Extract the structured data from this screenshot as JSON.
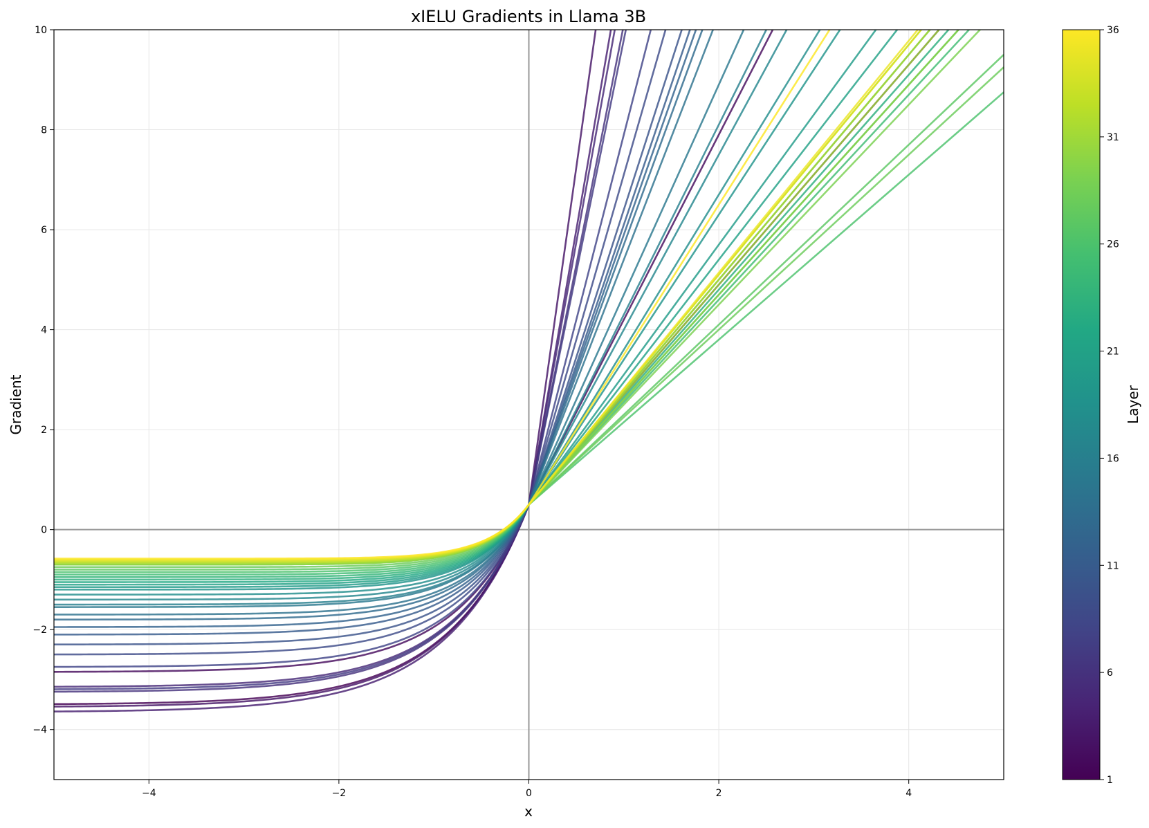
{
  "chart_data": {
    "type": "line",
    "title": "xIELU Gradients in Llama 3B",
    "xlabel": "x",
    "ylabel": "Gradient",
    "xlim": [
      -5,
      5
    ],
    "ylim": [
      -5,
      10
    ],
    "xticks": [
      -4,
      -2,
      0,
      2,
      4
    ],
    "yticks": [
      -4,
      -2,
      0,
      2,
      4,
      6,
      8,
      10
    ],
    "xtick_labels": [
      "−4",
      "−2",
      "0",
      "2",
      "4"
    ],
    "ytick_labels": [
      "−4",
      "−2",
      "0",
      "2",
      "4",
      "6",
      "8",
      "10"
    ],
    "grid": true,
    "colormap": "viridis",
    "colorbar": {
      "label": "Layer",
      "min": 1,
      "max": 36,
      "ticks": [
        1,
        6,
        11,
        16,
        21,
        26,
        31,
        36
      ],
      "tick_labels": [
        "1",
        "6",
        "11",
        "16",
        "21",
        "26",
        "31",
        "36"
      ]
    },
    "value_at_zero": 0.5,
    "series": [
      {
        "layer": 1,
        "left_asymptote": -3.5,
        "slope": 2.2
      },
      {
        "layer": 2,
        "left_asymptote": -2.85,
        "slope": 3.7
      },
      {
        "layer": 3,
        "left_asymptote": -3.55,
        "slope": 13.5
      },
      {
        "layer": 4,
        "left_asymptote": -3.65,
        "slope": 11.0
      },
      {
        "layer": 5,
        "left_asymptote": -3.15,
        "slope": 10.5
      },
      {
        "layer": 6,
        "left_asymptote": -3.25,
        "slope": 9.6
      },
      {
        "layer": 7,
        "left_asymptote": -3.2,
        "slope": 9.3
      },
      {
        "layer": 8,
        "left_asymptote": -2.75,
        "slope": 7.4
      },
      {
        "layer": 9,
        "left_asymptote": -2.5,
        "slope": 6.6
      },
      {
        "layer": 10,
        "left_asymptote": -2.3,
        "slope": 5.9
      },
      {
        "layer": 11,
        "left_asymptote": -2.1,
        "slope": 5.6
      },
      {
        "layer": 12,
        "left_asymptote": -1.95,
        "slope": 5.4
      },
      {
        "layer": 13,
        "left_asymptote": -1.8,
        "slope": 5.2
      },
      {
        "layer": 14,
        "left_asymptote": -1.7,
        "slope": 4.9
      },
      {
        "layer": 15,
        "left_asymptote": -1.55,
        "slope": 4.2
      },
      {
        "layer": 16,
        "left_asymptote": -1.5,
        "slope": 3.8
      },
      {
        "layer": 17,
        "left_asymptote": -1.4,
        "slope": 3.5
      },
      {
        "layer": 18,
        "left_asymptote": -1.3,
        "slope": 3.1
      },
      {
        "layer": 19,
        "left_asymptote": -1.2,
        "slope": 2.9
      },
      {
        "layer": 20,
        "left_asymptote": -1.15,
        "slope": 2.6
      },
      {
        "layer": 21,
        "left_asymptote": -1.1,
        "slope": 2.45
      },
      {
        "layer": 22,
        "left_asymptote": -1.05,
        "slope": 2.25
      },
      {
        "layer": 23,
        "left_asymptote": -1.0,
        "slope": 2.15
      },
      {
        "layer": 24,
        "left_asymptote": -0.95,
        "slope": 2.1
      },
      {
        "layer": 25,
        "left_asymptote": -0.9,
        "slope": 2.05
      },
      {
        "layer": 26,
        "left_asymptote": -0.85,
        "slope": 1.65
      },
      {
        "layer": 27,
        "left_asymptote": -0.8,
        "slope": 1.8
      },
      {
        "layer": 28,
        "left_asymptote": -0.75,
        "slope": 1.75
      },
      {
        "layer": 29,
        "left_asymptote": -0.7,
        "slope": 2.0
      },
      {
        "layer": 30,
        "left_asymptote": -0.7,
        "slope": 2.1
      },
      {
        "layer": 31,
        "left_asymptote": -0.68,
        "slope": 2.2
      },
      {
        "layer": 32,
        "left_asymptote": -0.66,
        "slope": 2.25
      },
      {
        "layer": 33,
        "left_asymptote": -0.64,
        "slope": 2.3
      },
      {
        "layer": 34,
        "left_asymptote": -0.62,
        "slope": 2.3
      },
      {
        "layer": 35,
        "left_asymptote": -0.6,
        "slope": 2.32
      },
      {
        "layer": 36,
        "left_asymptote": -0.58,
        "slope": 3.0
      }
    ]
  },
  "colors": {
    "zero_lines": "#999999",
    "grid": "#e6e6e6",
    "axes": "#000000"
  }
}
